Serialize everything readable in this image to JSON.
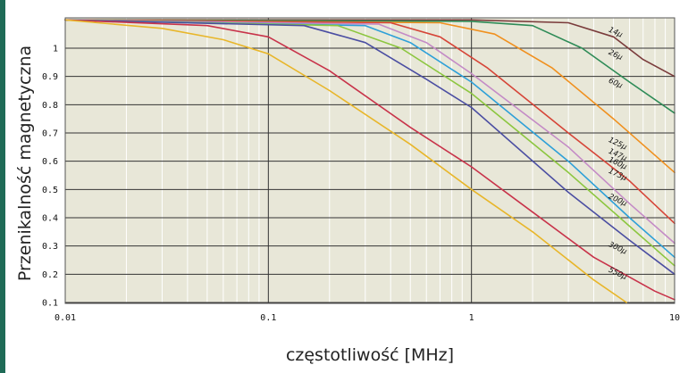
{
  "chart_data": {
    "type": "line",
    "xscale": "log",
    "xlim": [
      0.01,
      10
    ],
    "ylim": [
      0.1,
      1.1
    ],
    "xlabel": "częstotliwość [MHz]",
    "ylabel": "Przenikalność magnetyczna",
    "xticks": [
      {
        "value": 0.01,
        "label": "0.01"
      },
      {
        "value": 0.1,
        "label": "0.1"
      },
      {
        "value": 1,
        "label": "1"
      },
      {
        "value": 10,
        "label": "10"
      }
    ],
    "yticks": [
      {
        "value": 0.1,
        "label": "0.1"
      },
      {
        "value": 0.2,
        "label": "0.2"
      },
      {
        "value": 0.3,
        "label": "0.3"
      },
      {
        "value": 0.4,
        "label": "0.4"
      },
      {
        "value": 0.5,
        "label": "0.5"
      },
      {
        "value": 0.6,
        "label": "0.6"
      },
      {
        "value": 0.7,
        "label": "0.7"
      },
      {
        "value": 0.8,
        "label": "0.8"
      },
      {
        "value": 0.9,
        "label": "0.9"
      },
      {
        "value": 1,
        "label": "1"
      }
    ],
    "grid": true,
    "background": "#e8e7d8",
    "series": [
      {
        "name": "14μ",
        "color": "#7a3b3b",
        "label_at": [
          4.7,
          1.06
        ],
        "points": [
          [
            0.01,
            1.1
          ],
          [
            1,
            1.1
          ],
          [
            3,
            1.09
          ],
          [
            5,
            1.04
          ],
          [
            7,
            0.96
          ],
          [
            10,
            0.9
          ]
        ]
      },
      {
        "name": "26μ",
        "color": "#2e8b57",
        "label_at": [
          4.7,
          0.98
        ],
        "points": [
          [
            0.01,
            1.1
          ],
          [
            1,
            1.095
          ],
          [
            2,
            1.08
          ],
          [
            3.5,
            1.0
          ],
          [
            6,
            0.88
          ],
          [
            10,
            0.77
          ]
        ]
      },
      {
        "name": "60μ",
        "color": "#f0901e",
        "label_at": [
          4.7,
          0.88
        ],
        "points": [
          [
            0.01,
            1.1
          ],
          [
            0.7,
            1.09
          ],
          [
            1.3,
            1.05
          ],
          [
            2.5,
            0.93
          ],
          [
            5,
            0.75
          ],
          [
            10,
            0.56
          ]
        ]
      },
      {
        "name": "125μ",
        "color": "#d64538",
        "label_at": [
          4.7,
          0.67
        ],
        "points": [
          [
            0.01,
            1.1
          ],
          [
            0.4,
            1.09
          ],
          [
            0.7,
            1.04
          ],
          [
            1.2,
            0.93
          ],
          [
            3,
            0.7
          ],
          [
            6,
            0.53
          ],
          [
            10,
            0.38
          ]
        ]
      },
      {
        "name": "147μ",
        "color": "#c48bc6",
        "label_at": [
          4.7,
          0.63
        ],
        "points": [
          [
            0.01,
            1.1
          ],
          [
            0.35,
            1.085
          ],
          [
            0.6,
            1.02
          ],
          [
            1,
            0.91
          ],
          [
            3,
            0.65
          ],
          [
            6,
            0.45
          ],
          [
            10,
            0.31
          ]
        ]
      },
      {
        "name": "160μ",
        "color": "#2ea0d8",
        "label_at": [
          4.7,
          0.6
        ],
        "points": [
          [
            0.01,
            1.1
          ],
          [
            0.3,
            1.08
          ],
          [
            0.5,
            1.02
          ],
          [
            1,
            0.88
          ],
          [
            3,
            0.6
          ],
          [
            6,
            0.4
          ],
          [
            10,
            0.26
          ]
        ]
      },
      {
        "name": "173μ",
        "color": "#8cc63f",
        "label_at": [
          4.7,
          0.56
        ],
        "points": [
          [
            0.01,
            1.1
          ],
          [
            0.22,
            1.08
          ],
          [
            0.45,
            1.0
          ],
          [
            1,
            0.84
          ],
          [
            3,
            0.56
          ],
          [
            6,
            0.37
          ],
          [
            10,
            0.23
          ]
        ]
      },
      {
        "name": "200μ",
        "color": "#4b4ea2",
        "label_at": [
          4.7,
          0.47
        ],
        "points": [
          [
            0.01,
            1.1
          ],
          [
            0.15,
            1.08
          ],
          [
            0.3,
            1.02
          ],
          [
            0.6,
            0.89
          ],
          [
            1,
            0.79
          ],
          [
            3,
            0.49
          ],
          [
            6,
            0.32
          ],
          [
            10,
            0.2
          ]
        ]
      },
      {
        "name": "300μ",
        "color": "#c8334a",
        "label_at": [
          4.7,
          0.3
        ],
        "points": [
          [
            0.01,
            1.1
          ],
          [
            0.05,
            1.08
          ],
          [
            0.1,
            1.04
          ],
          [
            0.2,
            0.92
          ],
          [
            0.5,
            0.72
          ],
          [
            1,
            0.58
          ],
          [
            2,
            0.42
          ],
          [
            4,
            0.26
          ],
          [
            8,
            0.14
          ],
          [
            10,
            0.11
          ]
        ]
      },
      {
        "name": "550μ",
        "color": "#e8b62a",
        "label_at": [
          4.7,
          0.21
        ],
        "points": [
          [
            0.01,
            1.1
          ],
          [
            0.03,
            1.07
          ],
          [
            0.06,
            1.03
          ],
          [
            0.1,
            0.98
          ],
          [
            0.2,
            0.85
          ],
          [
            0.5,
            0.66
          ],
          [
            1,
            0.5
          ],
          [
            2,
            0.35
          ],
          [
            4,
            0.18
          ],
          [
            5.8,
            0.1
          ]
        ]
      }
    ]
  }
}
